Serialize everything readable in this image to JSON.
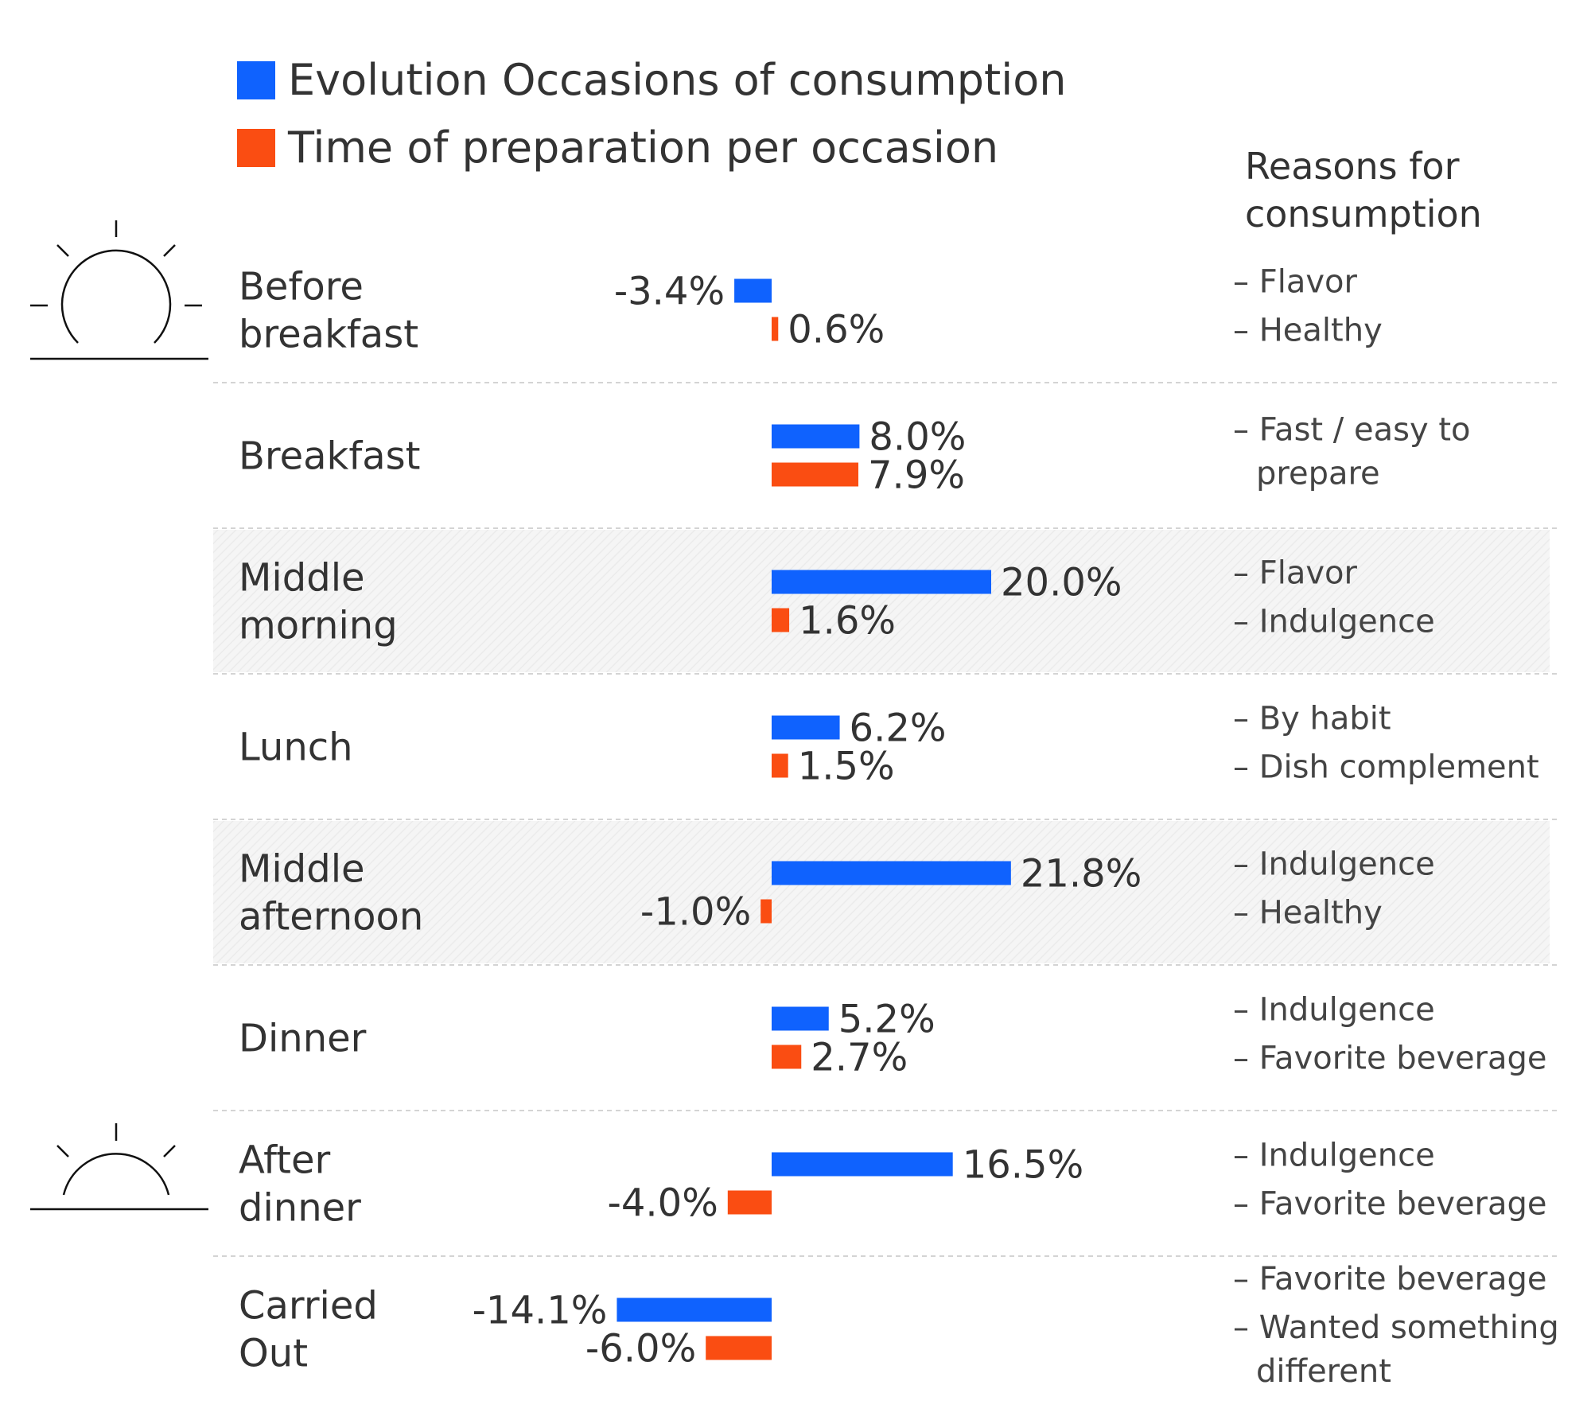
{
  "chart_data": {
    "type": "bar",
    "categories": [
      [
        "Before",
        "breakfast"
      ],
      [
        "Breakfast"
      ],
      [
        "Middle",
        "morning"
      ],
      [
        "Lunch"
      ],
      [
        "Middle",
        "afternoon"
      ],
      [
        "Dinner"
      ],
      [
        "After",
        "dinner"
      ],
      [
        "Carried",
        "Out"
      ]
    ],
    "series": [
      {
        "name": "Evolution Occasions of consumption",
        "color": "#0f62fe",
        "values": [
          -3.4,
          8.0,
          20.0,
          6.2,
          21.8,
          5.2,
          16.5,
          -14.1
        ],
        "labels": [
          "-3.4%",
          "8.0%",
          "20.0%",
          "6.2%",
          "21.8%",
          "5.2%",
          "16.5%",
          "-14.1%"
        ]
      },
      {
        "name": "Time of preparation per occasion",
        "color": "#fa4d12",
        "values": [
          0.6,
          7.9,
          1.6,
          1.5,
          -1.0,
          2.7,
          -4.0,
          -6.0
        ],
        "labels": [
          "0.6%",
          "7.9%",
          "1.6%",
          "1.5%",
          "-1.0%",
          "2.7%",
          "-4.0%",
          "-6.0%"
        ]
      }
    ],
    "reasons_header": [
      "Reasons for",
      "consumption"
    ],
    "reasons": [
      [
        [
          "– Flavor"
        ],
        [
          "– Healthy"
        ]
      ],
      [
        [
          "– Fast / easy to",
          "prepare"
        ]
      ],
      [
        [
          "– Flavor"
        ],
        [
          "– Indulgence"
        ]
      ],
      [
        [
          "– By habit"
        ],
        [
          "– Dish complement"
        ]
      ],
      [
        [
          "– Indulgence"
        ],
        [
          "– Healthy"
        ]
      ],
      [
        [
          "– Indulgence"
        ],
        [
          "– Favorite beverage"
        ]
      ],
      [
        [
          "– Indulgence"
        ],
        [
          "– Favorite beverage"
        ]
      ],
      [
        [
          "– Favorite beverage"
        ],
        [
          "– Wanted something",
          "different"
        ]
      ]
    ],
    "shaded_rows": [
      2,
      4
    ],
    "icons": [
      "sunrise-icon",
      "sunset-icon"
    ]
  }
}
